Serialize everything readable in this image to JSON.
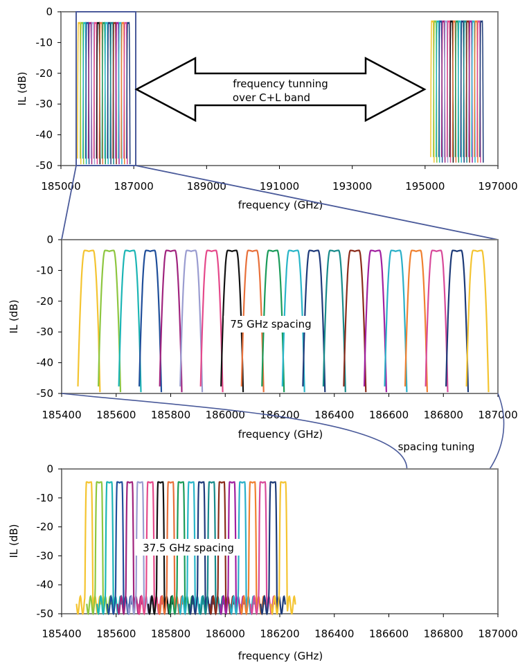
{
  "palette": [
    "#f4c430",
    "#8dc63f",
    "#1bb5b5",
    "#1f4e9a",
    "#a0237e",
    "#9a9cd0",
    "#e5488a",
    "#111111",
    "#e8703a",
    "#1a9b5a",
    "#28b5c8",
    "#1e3a7a",
    "#178a8a",
    "#8b2a1a",
    "#a020a0",
    "#2ab0c8",
    "#f08030",
    "#d84a9a",
    "#1c3a78"
  ],
  "annotations": {
    "freq_tuning_line1": "frequency tunning",
    "freq_tuning_line2": "over C+L band",
    "spacing_75": "75 GHz spacing",
    "spacing_tuning": "spacing tuning",
    "spacing_37": "37.5 GHz spacing"
  },
  "chart_data": [
    {
      "type": "line",
      "xlabel": "frequency (GHz)",
      "ylabel": "IL (dB)",
      "xlim": [
        185000,
        197000
      ],
      "ylim": [
        -50,
        0
      ],
      "xticks": [
        185000,
        187000,
        189000,
        191000,
        193000,
        195000,
        197000
      ],
      "yticks": [
        0,
        -10,
        -20,
        -30,
        -40,
        -50
      ],
      "groups": [
        {
          "first_center": 185500,
          "spacing": 75,
          "count": 19,
          "peak": -3.5,
          "passband_half_width": 22,
          "edge_width": 25
        },
        {
          "first_center": 195200,
          "spacing": 75,
          "count": 19,
          "peak": -3.0,
          "passband_half_width": 22,
          "edge_width": 25
        }
      ],
      "zoom_box": [
        185300,
        187000
      ],
      "grid": false,
      "legend": "none"
    },
    {
      "type": "line",
      "xlabel": "frequency (GHz)",
      "ylabel": "IL (dB)",
      "xlim": [
        185400,
        187000
      ],
      "ylim": [
        -50,
        0
      ],
      "xticks": [
        185400,
        185600,
        185800,
        186000,
        186200,
        186400,
        186600,
        186800,
        187000
      ],
      "yticks": [
        0,
        -10,
        -20,
        -30,
        -40,
        -50
      ],
      "series": [
        {
          "center": 185500,
          "peak": -3.5
        },
        {
          "center": 185575,
          "peak": -3.5
        },
        {
          "center": 185650,
          "peak": -3.5
        },
        {
          "center": 185725,
          "peak": -3.5
        },
        {
          "center": 185800,
          "peak": -3.5
        },
        {
          "center": 185875,
          "peak": -3.5
        },
        {
          "center": 185950,
          "peak": -3.5
        },
        {
          "center": 186025,
          "peak": -3.5
        },
        {
          "center": 186100,
          "peak": -3.5
        },
        {
          "center": 186175,
          "peak": -3.5
        },
        {
          "center": 186250,
          "peak": -3.5
        },
        {
          "center": 186325,
          "peak": -3.5
        },
        {
          "center": 186400,
          "peak": -3.5
        },
        {
          "center": 186475,
          "peak": -3.5
        },
        {
          "center": 186550,
          "peak": -3.5
        },
        {
          "center": 186625,
          "peak": -3.5
        },
        {
          "center": 186700,
          "peak": -3.5
        },
        {
          "center": 186775,
          "peak": -3.5
        },
        {
          "center": 186850,
          "peak": -3.5
        },
        {
          "center": 186925,
          "peak": -3.5
        }
      ],
      "passband_half_width": 16,
      "edge_width": 25,
      "grid": false,
      "legend": "none"
    },
    {
      "type": "line",
      "xlabel": "frequency (GHz)",
      "ylabel": "IL (dB)",
      "xlim": [
        185400,
        187000
      ],
      "ylim": [
        -50,
        0
      ],
      "xticks": [
        185400,
        185600,
        185800,
        186000,
        186200,
        186400,
        186600,
        186800,
        187000
      ],
      "yticks": [
        0,
        -10,
        -20,
        -30,
        -40,
        -50
      ],
      "first_center": 185500,
      "spacing": 37.5,
      "count": 20,
      "peak": -4.5,
      "passband_half_width": 9,
      "edge_width": 6,
      "sidelobe_floor": -47,
      "grid": false,
      "legend": "none"
    }
  ]
}
